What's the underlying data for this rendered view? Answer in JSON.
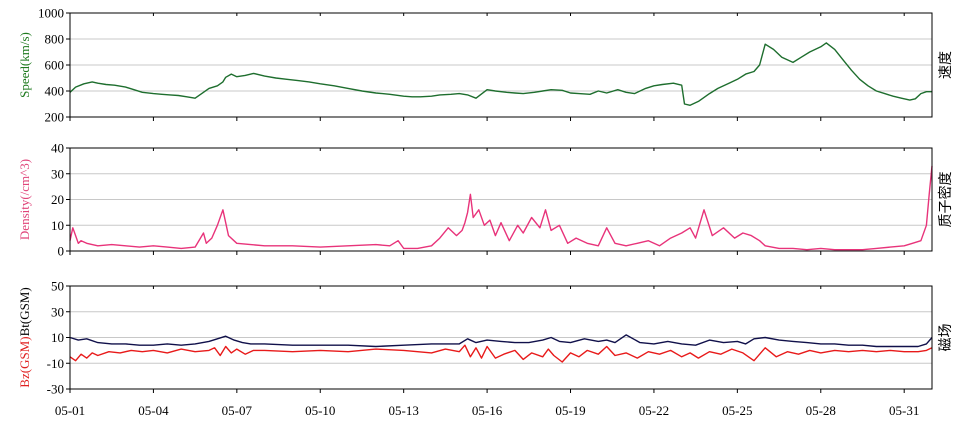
{
  "chart_data": [
    {
      "type": "line",
      "ylim": [
        200,
        1000
      ],
      "yticks": [
        200,
        400,
        600,
        800,
        1000
      ],
      "ylabel_left": "Speed(km/s)",
      "ylabel_right": "速度",
      "label_color": "#1e7a1e",
      "series": [
        {
          "color": "#1e6e2e",
          "x": [
            1.0,
            1.2,
            1.5,
            1.8,
            2.0,
            2.3,
            2.6,
            3.0,
            3.3,
            3.6,
            4.0,
            4.3,
            4.6,
            4.9,
            5.2,
            5.5,
            5.8,
            6.0,
            6.3,
            6.5,
            6.6,
            6.8,
            7.0,
            7.3,
            7.6,
            8.0,
            8.4,
            8.8,
            9.2,
            9.6,
            10.0,
            10.5,
            11.0,
            11.5,
            12.0,
            12.5,
            13.0,
            13.3,
            13.6,
            14.0,
            14.3,
            14.7,
            15.0,
            15.3,
            15.6,
            16.0,
            16.3,
            16.7,
            17.0,
            17.3,
            17.7,
            18.0,
            18.3,
            18.7,
            19.0,
            19.3,
            19.7,
            20.0,
            20.3,
            20.7,
            21.0,
            21.3,
            21.7,
            22.0,
            22.3,
            22.7,
            23.0,
            23.1,
            23.3,
            23.6,
            24.0,
            24.3,
            24.7,
            25.0,
            25.3,
            25.6,
            25.8,
            26.0,
            26.3,
            26.6,
            27.0,
            27.3,
            27.6,
            28.0,
            28.2,
            28.5,
            28.8,
            29.1,
            29.4,
            29.7,
            30.0,
            30.3,
            30.6,
            30.9,
            31.2,
            31.4,
            31.6,
            31.8,
            32.0
          ],
          "y": [
            390,
            430,
            455,
            470,
            460,
            450,
            445,
            430,
            410,
            390,
            380,
            375,
            370,
            365,
            355,
            345,
            390,
            420,
            440,
            470,
            505,
            530,
            510,
            520,
            535,
            515,
            500,
            490,
            480,
            470,
            455,
            440,
            420,
            400,
            385,
            375,
            360,
            355,
            355,
            360,
            370,
            375,
            380,
            370,
            345,
            410,
            400,
            390,
            385,
            380,
            390,
            400,
            410,
            405,
            385,
            380,
            375,
            400,
            385,
            410,
            390,
            380,
            420,
            440,
            450,
            460,
            445,
            300,
            290,
            320,
            380,
            420,
            460,
            490,
            530,
            550,
            600,
            760,
            720,
            660,
            620,
            660,
            700,
            740,
            770,
            720,
            640,
            560,
            490,
            440,
            400,
            380,
            360,
            345,
            330,
            340,
            380,
            395,
            395
          ]
        }
      ]
    },
    {
      "type": "line",
      "ylim": [
        0,
        40
      ],
      "yticks": [
        0,
        10,
        20,
        30,
        40
      ],
      "ylabel_left": "Density(/cm^3)",
      "ylabel_right": "质子密度",
      "label_color": "#e0457a",
      "series": [
        {
          "color": "#e8337a",
          "x": [
            1.0,
            1.1,
            1.2,
            1.3,
            1.4,
            1.6,
            1.8,
            2.0,
            2.5,
            3.0,
            3.5,
            4.0,
            4.5,
            5.0,
            5.5,
            5.8,
            5.9,
            6.1,
            6.3,
            6.5,
            6.7,
            7.0,
            7.5,
            8.0,
            9.0,
            10.0,
            11.0,
            12.0,
            12.5,
            12.8,
            13.0,
            13.5,
            14.0,
            14.3,
            14.6,
            14.9,
            15.1,
            15.2,
            15.3,
            15.4,
            15.5,
            15.7,
            15.9,
            16.1,
            16.3,
            16.5,
            16.8,
            17.1,
            17.3,
            17.6,
            17.9,
            18.1,
            18.3,
            18.6,
            18.9,
            19.2,
            19.6,
            20.0,
            20.3,
            20.6,
            21.0,
            21.4,
            21.8,
            22.2,
            22.6,
            23.0,
            23.3,
            23.5,
            23.8,
            24.1,
            24.5,
            24.9,
            25.2,
            25.5,
            25.8,
            26.0,
            26.5,
            27.0,
            27.5,
            28.0,
            28.5,
            29.0,
            29.5,
            30.0,
            30.5,
            31.0,
            31.3,
            31.6,
            31.8,
            31.9,
            32.0
          ],
          "y": [
            4,
            9,
            6,
            3,
            4,
            3,
            2.5,
            2,
            2.5,
            2,
            1.5,
            2,
            1.5,
            1,
            1.5,
            7,
            3,
            5,
            10,
            16,
            6,
            3,
            2.5,
            2,
            2,
            1.5,
            2,
            2.5,
            2,
            4,
            1,
            1,
            2,
            5,
            9,
            6,
            8,
            11,
            15,
            22,
            13,
            16,
            10,
            12,
            6,
            11,
            4,
            10,
            7,
            13,
            9,
            16,
            8,
            10,
            3,
            5,
            3,
            2,
            9,
            3,
            2,
            3,
            4,
            2,
            5,
            7,
            9,
            5,
            16,
            6,
            9,
            5,
            7,
            6,
            4,
            2,
            1,
            1,
            0.5,
            1,
            0.5,
            0.5,
            0.5,
            1,
            1.5,
            2,
            3,
            4,
            10,
            22,
            33
          ]
        }
      ]
    },
    {
      "type": "line",
      "ylim": [
        -30,
        50
      ],
      "yticks": [
        -30,
        -10,
        10,
        30,
        50
      ],
      "ylabel_left_a": "Bz(GSM)",
      "ylabel_left_b": "Bt(GSM)",
      "ylabel_right": "磁场",
      "label_color_a": "#e02020",
      "label_color_b": "#000000",
      "series": [
        {
          "color": "#10104a",
          "x": [
            1.0,
            1.3,
            1.6,
            2.0,
            2.5,
            3.0,
            3.5,
            4.0,
            4.5,
            5.0,
            5.5,
            6.0,
            6.3,
            6.6,
            6.9,
            7.2,
            7.5,
            8.0,
            9.0,
            10.0,
            11.0,
            12.0,
            13.0,
            14.0,
            14.5,
            15.0,
            15.3,
            15.6,
            16.0,
            16.5,
            17.0,
            17.5,
            18.0,
            18.3,
            18.6,
            19.0,
            19.5,
            20.0,
            20.3,
            20.6,
            21.0,
            21.5,
            22.0,
            22.5,
            23.0,
            23.5,
            24.0,
            24.5,
            25.0,
            25.3,
            25.6,
            26.0,
            26.5,
            27.0,
            27.5,
            28.0,
            28.5,
            29.0,
            29.5,
            30.0,
            30.5,
            31.0,
            31.5,
            31.8,
            32.0
          ],
          "y": [
            10,
            8,
            9,
            6,
            5,
            5,
            4,
            4,
            5,
            4,
            5,
            7,
            9,
            11,
            8,
            6,
            5,
            5,
            4,
            4,
            4,
            3,
            4,
            5,
            5,
            5,
            9,
            6,
            8,
            7,
            6,
            6,
            8,
            10,
            7,
            6,
            9,
            7,
            8,
            6,
            12,
            6,
            5,
            7,
            5,
            4,
            8,
            6,
            7,
            5,
            9,
            10,
            8,
            7,
            6,
            5,
            5,
            4,
            4,
            3,
            3,
            3,
            3,
            5,
            10
          ]
        },
        {
          "color": "#e81a1a",
          "x": [
            1.0,
            1.2,
            1.4,
            1.6,
            1.8,
            2.0,
            2.4,
            2.8,
            3.2,
            3.6,
            4.0,
            4.5,
            5.0,
            5.5,
            6.0,
            6.2,
            6.4,
            6.6,
            6.8,
            7.0,
            7.3,
            7.6,
            8.0,
            9.0,
            10.0,
            11.0,
            12.0,
            13.0,
            14.0,
            14.5,
            15.0,
            15.2,
            15.4,
            15.6,
            15.8,
            16.0,
            16.3,
            16.6,
            17.0,
            17.3,
            17.6,
            18.0,
            18.2,
            18.4,
            18.7,
            19.0,
            19.3,
            19.6,
            20.0,
            20.3,
            20.6,
            21.0,
            21.4,
            21.8,
            22.2,
            22.6,
            23.0,
            23.3,
            23.6,
            24.0,
            24.4,
            24.8,
            25.2,
            25.6,
            26.0,
            26.4,
            26.8,
            27.2,
            27.6,
            28.0,
            28.5,
            29.0,
            29.5,
            30.0,
            30.5,
            31.0,
            31.5,
            31.8,
            32.0
          ],
          "y": [
            -5,
            -8,
            -3,
            -6,
            -2,
            -4,
            -1,
            -2,
            0,
            -1,
            0,
            -2,
            1,
            -1,
            0,
            2,
            -4,
            3,
            -2,
            1,
            -3,
            0,
            0,
            -1,
            0,
            -1,
            1,
            0,
            -2,
            1,
            -1,
            4,
            -5,
            2,
            -6,
            3,
            -6,
            -3,
            0,
            -7,
            -2,
            -5,
            1,
            -4,
            -9,
            -2,
            -5,
            0,
            -3,
            3,
            -4,
            -2,
            -6,
            -1,
            -3,
            0,
            -5,
            -2,
            -6,
            -1,
            -3,
            1,
            -2,
            -8,
            2,
            -5,
            -1,
            -3,
            0,
            -2,
            0,
            -1,
            0,
            -1,
            0,
            -1,
            -1,
            0,
            2
          ]
        }
      ]
    }
  ],
  "x_axis": {
    "xlim": [
      1,
      32
    ],
    "ticks": [
      1,
      4,
      7,
      10,
      13,
      16,
      19,
      22,
      25,
      28,
      31
    ],
    "tick_labels": [
      "05-01",
      "05-04",
      "05-07",
      "05-10",
      "05-13",
      "05-16",
      "05-19",
      "05-22",
      "05-25",
      "05-28",
      "05-31"
    ]
  }
}
